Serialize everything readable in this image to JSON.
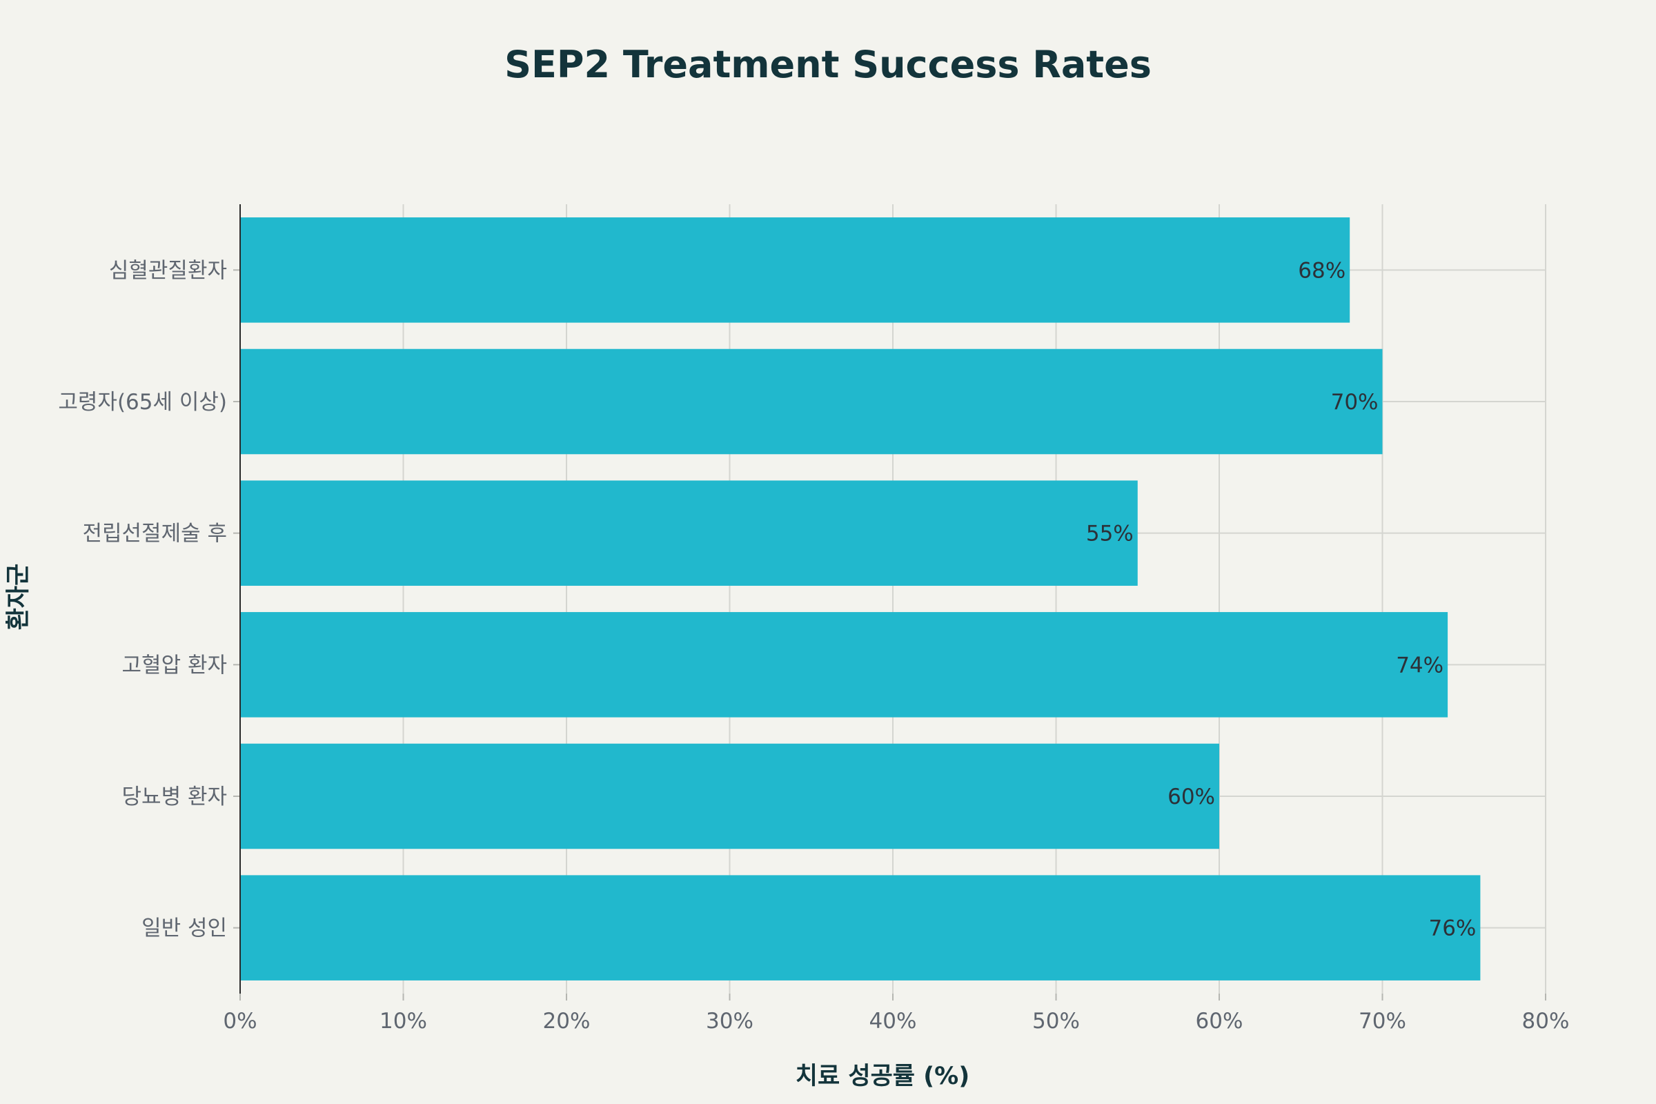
{
  "chart_data": {
    "type": "bar",
    "orientation": "horizontal",
    "title": "SEP2 Treatment Success Rates",
    "xlabel": "치료 성공률 (%)",
    "ylabel": "환자군",
    "categories": [
      "심혈관질환자",
      "고령자(65세 이상)",
      "전립선절제술 후",
      "고혈압 환자",
      "당뇨병 환자",
      "일반 성인"
    ],
    "values": [
      68,
      70,
      55,
      74,
      60,
      76
    ],
    "data_labels": [
      "68%",
      "70%",
      "55%",
      "74%",
      "60%",
      "76%"
    ],
    "xlim": [
      0,
      80
    ],
    "x_ticks": [
      0,
      10,
      20,
      30,
      40,
      50,
      60,
      70,
      80
    ],
    "x_tick_labels": [
      "0%",
      "10%",
      "20%",
      "30%",
      "40%",
      "50%",
      "60%",
      "70%",
      "80%"
    ],
    "grid": true,
    "legend": "none",
    "colors": {
      "bar": "#21b8cd",
      "background": "#f3f3ee",
      "title": "#13343b",
      "grid": "#d4d5d0"
    }
  }
}
